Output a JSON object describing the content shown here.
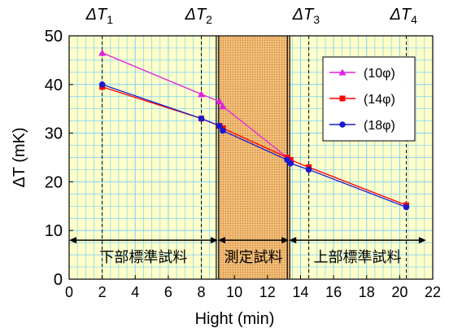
{
  "chart_data": {
    "type": "line",
    "xlabel": "Hight (min)",
    "ylabel": "ΔT (mK)",
    "xlim": [
      0,
      22
    ],
    "ylim": [
      0,
      50
    ],
    "xticks": [
      0,
      2,
      4,
      6,
      8,
      10,
      12,
      14,
      16,
      18,
      20,
      22
    ],
    "yticks": [
      0,
      10,
      20,
      30,
      40,
      50
    ],
    "grid": true,
    "legend_position": "top-right",
    "top_markers": [
      {
        "base": "ΔT",
        "sub": "1",
        "x": 2
      },
      {
        "base": "ΔT",
        "sub": "2",
        "x": 8
      },
      {
        "base": "ΔT",
        "sub": "3",
        "x": 14.5
      },
      {
        "base": "ΔT",
        "sub": "4",
        "x": 20.4
      }
    ],
    "regions": [
      {
        "label": "下部標準試料",
        "x_start": 0,
        "x_end": 9
      },
      {
        "label": "測定試料",
        "x_start": 9,
        "x_end": 13.3
      },
      {
        "label": "上部標準試料",
        "x_start": 13.3,
        "x_end": 21.6
      }
    ],
    "region_line_y": 8,
    "sample_region": [
      9,
      13.3
    ],
    "series": [
      {
        "name": "(10φ)",
        "color": "#e020e0",
        "marker": "triangle",
        "x": [
          2,
          8,
          9.1,
          9.3,
          13.2,
          13.4
        ],
        "y": [
          46.5,
          38,
          36.5,
          35.5,
          25,
          24.5
        ]
      },
      {
        "name": "(14φ)",
        "color": "#ff0000",
        "marker": "square",
        "x": [
          2,
          8,
          9.1,
          9.3,
          13.2,
          13.4,
          14.5,
          20.4
        ],
        "y": [
          39.5,
          33,
          31.5,
          31,
          25,
          24.5,
          23,
          15.2
        ]
      },
      {
        "name": "(18φ)",
        "color": "#1a1ad0",
        "marker": "circle",
        "x": [
          2,
          8,
          9.1,
          9.3,
          13.2,
          13.4,
          14.5,
          20.4
        ],
        "y": [
          40,
          33,
          31.5,
          30.5,
          24.5,
          23.8,
          22.5,
          14.8
        ]
      }
    ],
    "colors": {
      "plot_background": "#ffffc8",
      "grid": "#7ad0ff",
      "sample_fill": "#f2c07a",
      "sample_dots": "#c87a30"
    }
  }
}
